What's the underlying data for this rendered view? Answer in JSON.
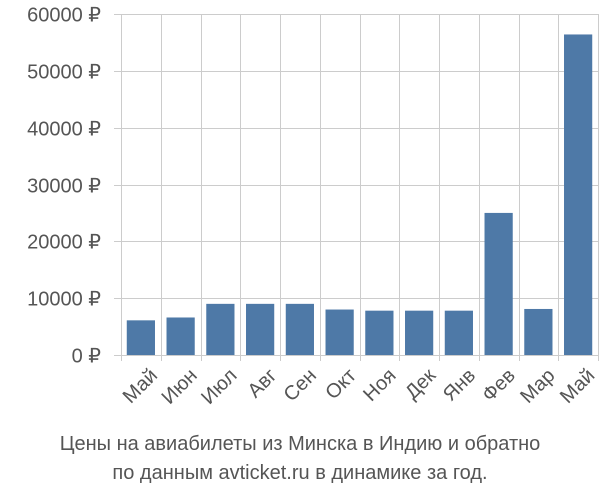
{
  "chart_data": {
    "type": "bar",
    "categories": [
      "Май",
      "Июн",
      "Июл",
      "Авг",
      "Сен",
      "Окт",
      "Ноя",
      "Дек",
      "Янв",
      "Фев",
      "Мар",
      "Май"
    ],
    "values": [
      6100,
      6600,
      9000,
      9000,
      9000,
      8000,
      7800,
      7800,
      7800,
      25000,
      8100,
      56400
    ],
    "y_ticks": [
      0,
      10000,
      20000,
      30000,
      40000,
      50000,
      60000
    ],
    "y_tick_labels": [
      "0 ₽",
      "10000 ₽",
      "20000 ₽",
      "30000 ₽",
      "40000 ₽",
      "50000 ₽",
      "60000 ₽"
    ],
    "ylim": [
      0,
      60000
    ],
    "title": "",
    "xlabel": "",
    "ylabel": "",
    "grid": true,
    "colors": {
      "bar": "#4e79a7",
      "grid": "#cccccc",
      "text": "#555555"
    }
  },
  "caption": {
    "line1": "Цены на авиабилеты из Минска в Индию и обратно",
    "line2": "по данным avticket.ru в динамике за год."
  }
}
